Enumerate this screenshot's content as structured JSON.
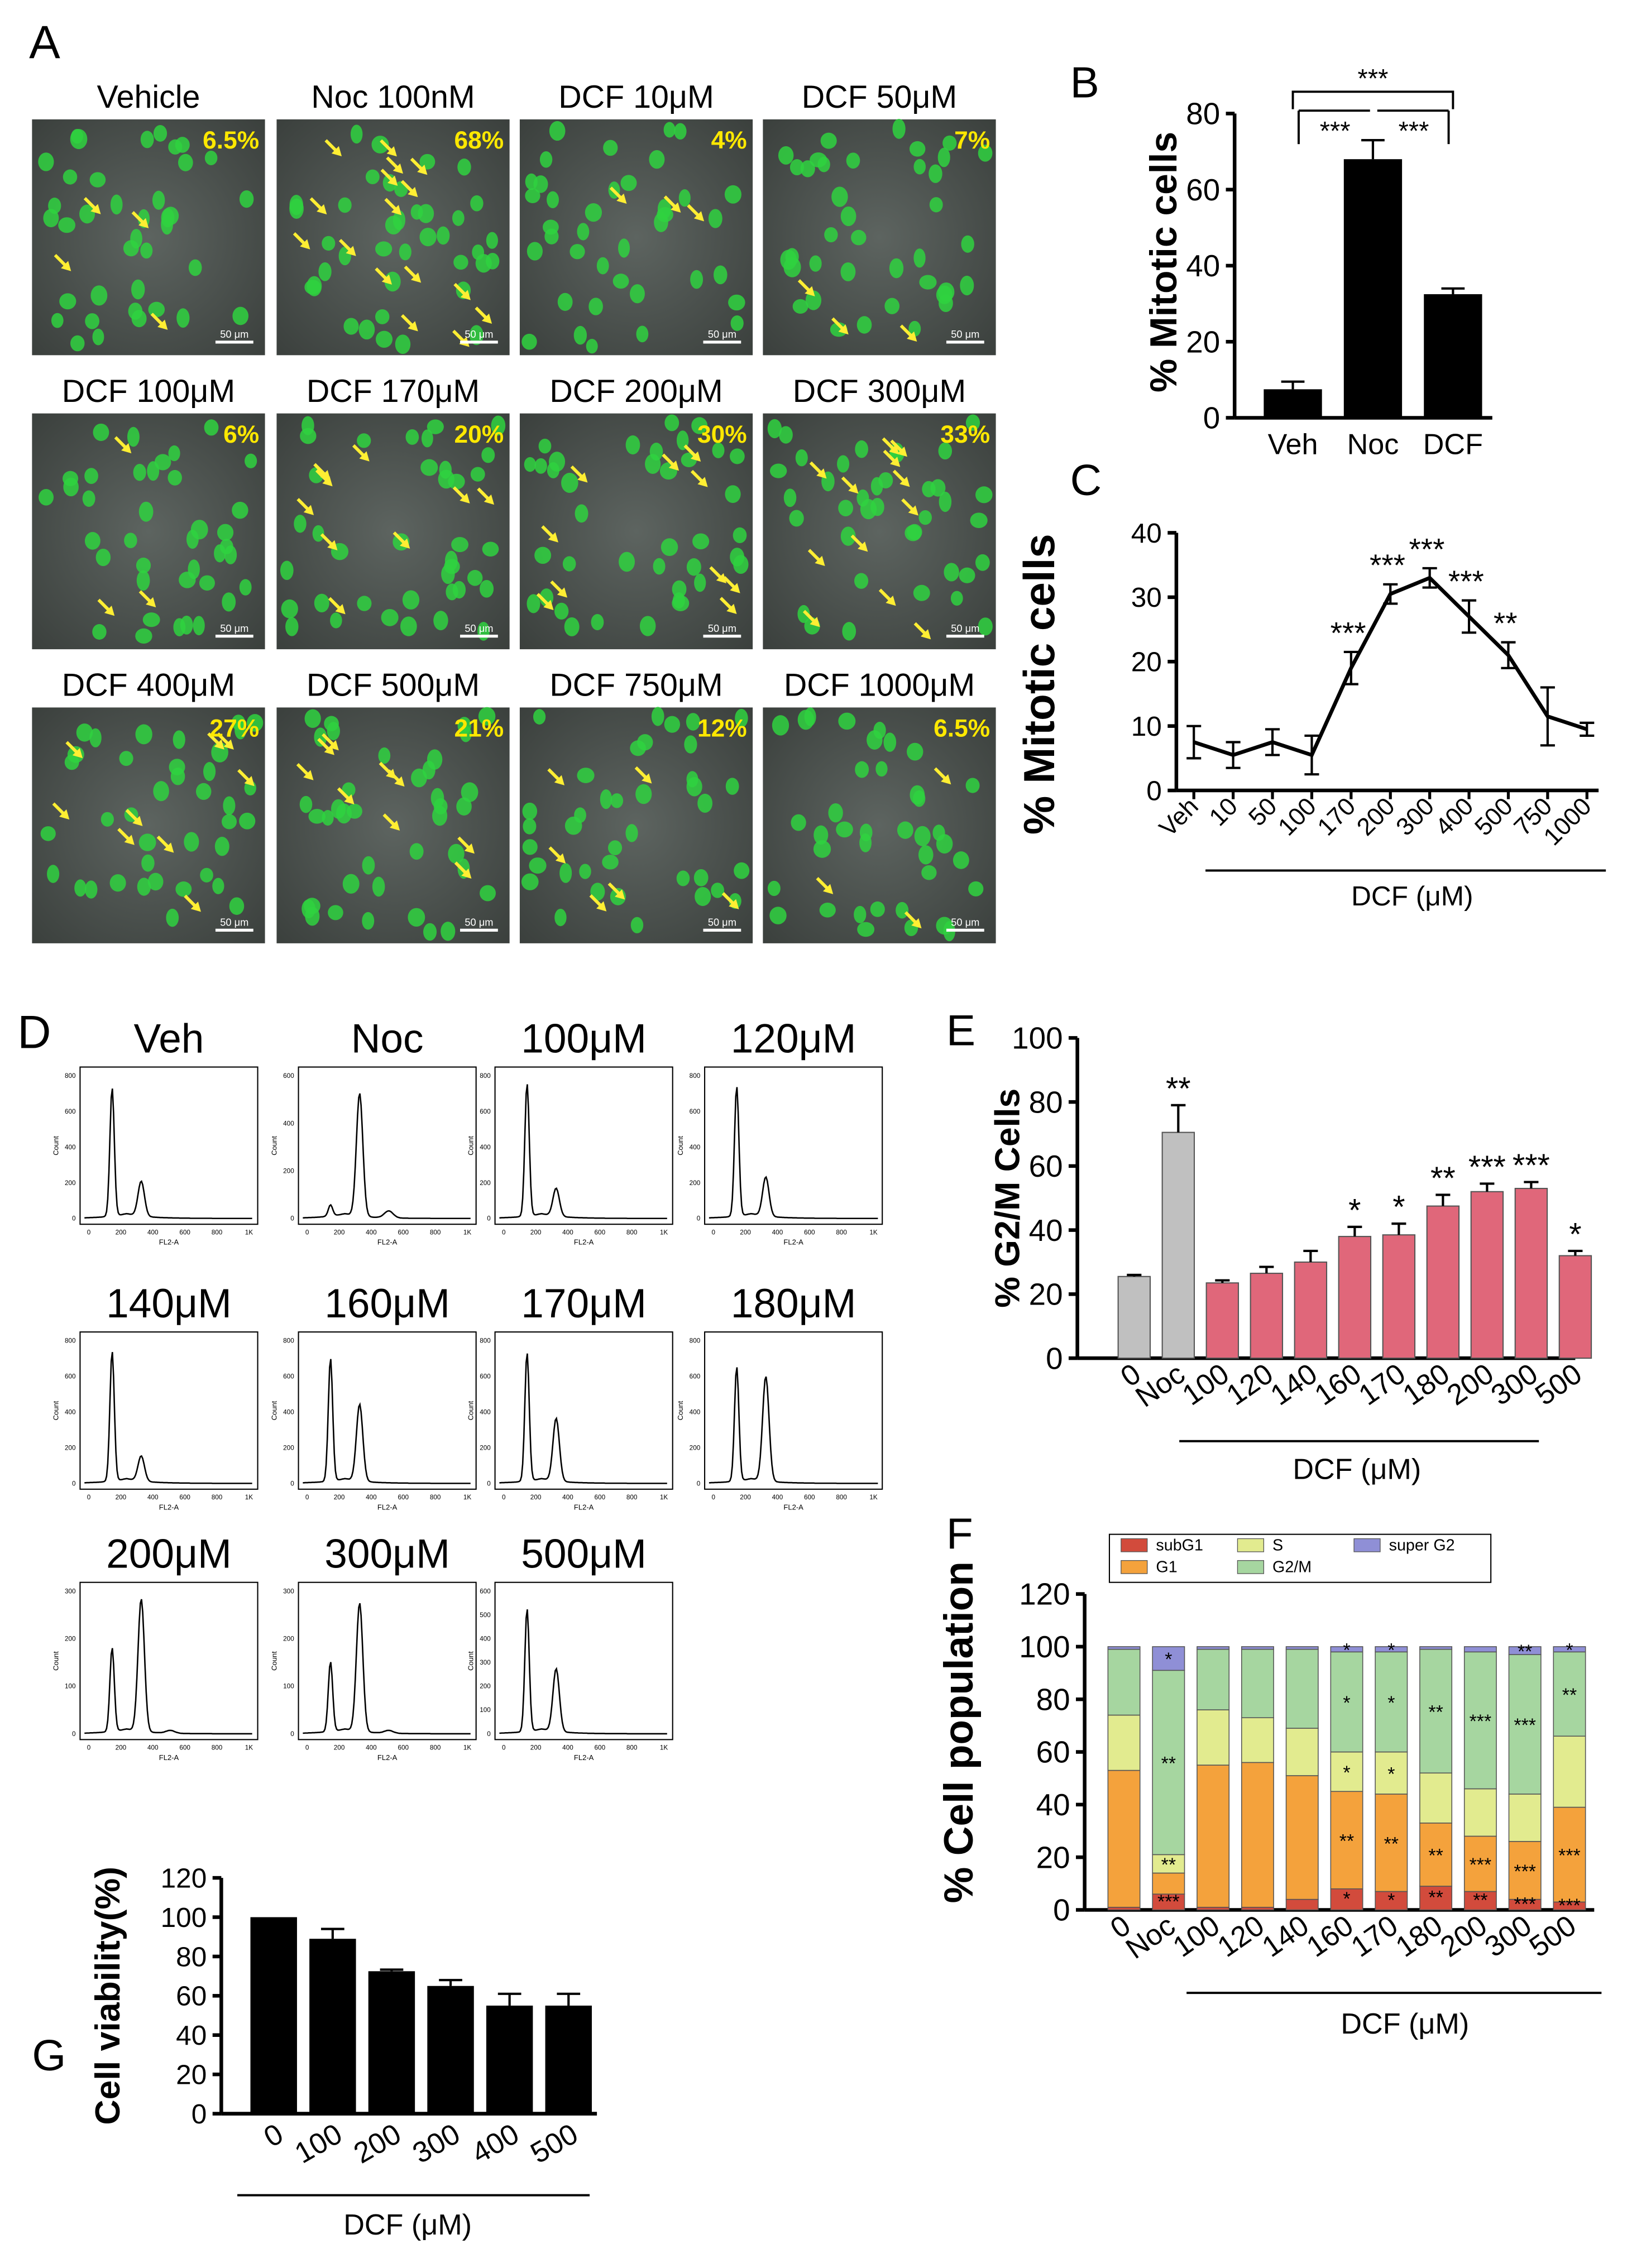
{
  "panel_letters": [
    "A",
    "B",
    "C",
    "D",
    "E",
    "F",
    "G"
  ],
  "scale_bar_label": "50 μm",
  "flow_axis": {
    "xlabel": "FL2-A",
    "ylabel": "Count",
    "xticks": [
      "0",
      "200",
      "400",
      "600",
      "800",
      "1K"
    ]
  },
  "panel_a": {
    "images": [
      {
        "title": "Vehicle",
        "pct": "6.5%",
        "arrows": 4
      },
      {
        "title": "Noc 100nM",
        "pct": "68%",
        "arrows": 16
      },
      {
        "title": "DCF 10μM",
        "pct": "4%",
        "arrows": 3
      },
      {
        "title": "DCF 50μM",
        "pct": "7%",
        "arrows": 3
      },
      {
        "title": "DCF 100μM",
        "pct": "6%",
        "arrows": 3
      },
      {
        "title": "DCF 170μM",
        "pct": "20%",
        "arrows": 9
      },
      {
        "title": "DCF 200μM",
        "pct": "30%",
        "arrows": 10
      },
      {
        "title": "DCF 300μM",
        "pct": "33%",
        "arrows": 12
      },
      {
        "title": "DCF 400μM",
        "pct": "27%",
        "arrows": 9
      },
      {
        "title": "DCF 500μM",
        "pct": "21%",
        "arrows": 9
      },
      {
        "title": "DCF 750μM",
        "pct": "12%",
        "arrows": 6
      },
      {
        "title": "DCF 1000μM",
        "pct": "6.5%",
        "arrows": 3
      }
    ]
  },
  "panel_d": {
    "plots": [
      {
        "title": "Veh",
        "ymax": "800",
        "yticks": [
          "0",
          "200",
          "400",
          "600",
          "800"
        ],
        "g1": 0.92,
        "g2": 0.25,
        "super": 0.0
      },
      {
        "title": "Noc",
        "ymax": "600",
        "yticks": [
          "0",
          "200",
          "400",
          "600"
        ],
        "g1": 0.08,
        "g2": 0.88,
        "super": 0.05
      },
      {
        "title": "100μM",
        "ymax": "800",
        "yticks": [
          "0",
          "200",
          "400",
          "600",
          "800"
        ],
        "g1": 0.95,
        "g2": 0.2,
        "super": 0.0
      },
      {
        "title": "120μM",
        "ymax": "800",
        "yticks": [
          "0",
          "200",
          "400",
          "600",
          "800"
        ],
        "g1": 0.93,
        "g2": 0.28,
        "super": 0.0
      },
      {
        "title": "140μM",
        "ymax": "800",
        "yticks": [
          "0",
          "200",
          "400",
          "600",
          "800"
        ],
        "g1": 0.93,
        "g2": 0.18,
        "super": 0.0
      },
      {
        "title": "160μM",
        "ymax": "800",
        "yticks": [
          "0",
          "200",
          "400",
          "600",
          "800"
        ],
        "g1": 0.88,
        "g2": 0.55,
        "super": 0.0
      },
      {
        "title": "170μM",
        "ymax": "800",
        "yticks": [
          "0",
          "200",
          "400",
          "600",
          "800"
        ],
        "g1": 0.92,
        "g2": 0.45,
        "super": 0.0
      },
      {
        "title": "180μM",
        "ymax": "800",
        "yticks": [
          "0",
          "200",
          "400",
          "600",
          "800"
        ],
        "g1": 0.82,
        "g2": 0.75,
        "super": 0.0
      },
      {
        "title": "200μM",
        "ymax": "300",
        "yticks": [
          "0",
          "100",
          "200",
          "300"
        ],
        "g1": 0.6,
        "g2": 0.95,
        "super": 0.02
      },
      {
        "title": "300μM",
        "ymax": "300",
        "yticks": [
          "0",
          "100",
          "200",
          "300"
        ],
        "g1": 0.5,
        "g2": 0.92,
        "super": 0.02
      },
      {
        "title": "500μM",
        "ymax": "600",
        "yticks": [
          "0",
          "100",
          "200",
          "300",
          "400",
          "500",
          "600"
        ],
        "g1": 0.88,
        "g2": 0.45,
        "super": 0.0
      }
    ]
  },
  "chart_data": [
    {
      "id": "B",
      "type": "bar",
      "ylabel": "% Mitotic cells",
      "ylim": [
        0,
        80
      ],
      "yticks": [
        0,
        20,
        40,
        60,
        80
      ],
      "categories": [
        "Veh",
        "Noc",
        "DCF"
      ],
      "values": [
        7.5,
        68,
        32.5
      ],
      "errors": [
        2,
        5,
        1.5
      ],
      "significance": [
        "***",
        "***",
        "***"
      ]
    },
    {
      "id": "C",
      "type": "line",
      "ylabel": "% Mitotic cells",
      "xlabel": "DCF (μM)",
      "ylim": [
        0,
        40
      ],
      "yticks": [
        0,
        10,
        20,
        30,
        40
      ],
      "categories": [
        "Veh",
        "10",
        "50",
        "100",
        "170",
        "200",
        "300",
        "400",
        "500",
        "750",
        "1000"
      ],
      "values": [
        7.5,
        5.5,
        7.5,
        5.5,
        19,
        30.5,
        33,
        27,
        21,
        11.5,
        9.5
      ],
      "errors": [
        2.5,
        2,
        2,
        3,
        2.5,
        1.5,
        1.5,
        2.5,
        2,
        4.5,
        1
      ],
      "significance": [
        "",
        "",
        "",
        "",
        "***",
        "***",
        "***",
        "***",
        "**",
        "",
        ""
      ]
    },
    {
      "id": "E",
      "type": "bar",
      "ylabel": "% G2/M Cells",
      "xlabel": "DCF (μM)",
      "ylim": [
        0,
        100
      ],
      "yticks": [
        0,
        20,
        40,
        60,
        80,
        100
      ],
      "categories": [
        "0",
        "Noc",
        "100",
        "120",
        "140",
        "160",
        "170",
        "180",
        "200",
        "300",
        "500"
      ],
      "values": [
        25.5,
        70.5,
        23.5,
        26.5,
        30,
        38,
        38.5,
        47.5,
        52,
        53,
        32
      ],
      "errors": [
        0.5,
        8.5,
        0.8,
        2,
        3.5,
        3,
        3.5,
        3.5,
        2.5,
        2,
        1.5
      ],
      "significance": [
        "",
        "**",
        "",
        "",
        "",
        "*",
        "*",
        "**",
        "***",
        "***",
        "*"
      ],
      "colors": [
        "#c0c0c0",
        "#c0c0c0",
        "#e0677a",
        "#e0677a",
        "#e0677a",
        "#e0677a",
        "#e0677a",
        "#e0677a",
        "#e0677a",
        "#e0677a",
        "#e0677a"
      ]
    },
    {
      "id": "F",
      "type": "stacked_bar",
      "ylabel": "% Cell population",
      "xlabel": "DCF (μM)",
      "ylim": [
        0,
        120
      ],
      "yticks": [
        0,
        20,
        40,
        60,
        80,
        100,
        120
      ],
      "categories": [
        "0",
        "Noc",
        "100",
        "120",
        "140",
        "160",
        "170",
        "180",
        "200",
        "300",
        "500"
      ],
      "series": [
        {
          "name": "subG1",
          "color": "#d24b3c",
          "values": [
            1,
            6,
            1,
            1,
            4,
            8,
            7,
            9,
            7,
            4,
            3
          ]
        },
        {
          "name": "G1",
          "color": "#f4a23c",
          "values": [
            52,
            8,
            54,
            55,
            47,
            37,
            37,
            24,
            21,
            22,
            36
          ]
        },
        {
          "name": "S",
          "color": "#e2eb8f",
          "values": [
            21,
            7,
            21,
            17,
            18,
            15,
            16,
            19,
            18,
            18,
            27
          ]
        },
        {
          "name": "G2/M",
          "color": "#a6d6a0",
          "values": [
            25,
            70,
            23,
            26,
            30,
            38,
            38,
            47,
            52,
            53,
            32
          ]
        },
        {
          "name": "super G2",
          "color": "#8f8fd6",
          "values": [
            1,
            9,
            1,
            1,
            1,
            2,
            2,
            1,
            2,
            3,
            2
          ]
        }
      ],
      "annotations": [
        [
          "",
          "",
          "",
          "",
          "",
          "",
          "",
          "",
          "",
          "",
          ""
        ],
        [
          "",
          "***",
          "",
          "",
          "",
          "*",
          "*",
          "**",
          "**",
          "***",
          "***"
        ],
        [
          "",
          "",
          "",
          "",
          "",
          "**",
          "**",
          "**",
          "***",
          "***",
          "***"
        ],
        [
          "",
          "**",
          "",
          "",
          "",
          "*",
          "*",
          "",
          "",
          "",
          ""
        ],
        [
          "",
          "**",
          "",
          "",
          "",
          "*",
          "*",
          "**",
          "***",
          "***",
          "**"
        ],
        [
          "",
          "*",
          "",
          "",
          "",
          "*",
          "*",
          "",
          "",
          "**",
          "*"
        ]
      ]
    },
    {
      "id": "G",
      "type": "bar",
      "ylabel": "Cell viability(%)",
      "xlabel": "DCF (μM)",
      "ylim": [
        0,
        120
      ],
      "yticks": [
        0,
        20,
        40,
        60,
        80,
        100,
        120
      ],
      "categories": [
        "0",
        "100",
        "200",
        "300",
        "400",
        "500"
      ],
      "values": [
        100,
        89,
        72.5,
        65,
        55,
        55
      ],
      "errors": [
        0,
        5,
        0.8,
        3,
        6,
        6
      ]
    }
  ]
}
